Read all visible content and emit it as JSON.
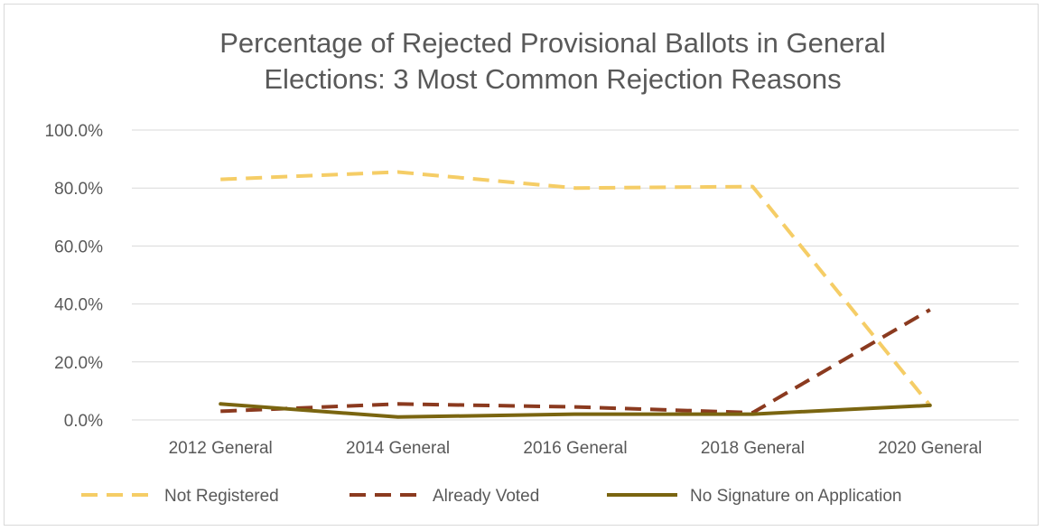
{
  "chart_data": {
    "type": "line",
    "title_lines": [
      "Percentage of Rejected Provisional Ballots in General",
      "Elections:  3 Most Common Rejection Reasons"
    ],
    "xlabel": "",
    "ylabel": "",
    "categories": [
      "2012 General",
      "2014 General",
      "2016 General",
      "2018 General",
      "2020 General"
    ],
    "y_ticks": [
      "0.0%",
      "20.0%",
      "40.0%",
      "60.0%",
      "80.0%",
      "100.0%"
    ],
    "ylim": [
      0,
      100
    ],
    "grid": true,
    "legend_position": "bottom",
    "series": [
      {
        "name": "Not Registered",
        "values": [
          83,
          85.5,
          80,
          80.5,
          5
        ],
        "color": "#f5cd66",
        "dash": "dashed"
      },
      {
        "name": "Already Voted",
        "values": [
          3,
          5.5,
          4.5,
          2.5,
          38
        ],
        "color": "#8b3a1f",
        "dash": "dashed"
      },
      {
        "name": "No Signature on Application",
        "values": [
          5.5,
          1,
          2,
          2,
          5
        ],
        "color": "#7a6510",
        "dash": "solid"
      }
    ]
  }
}
